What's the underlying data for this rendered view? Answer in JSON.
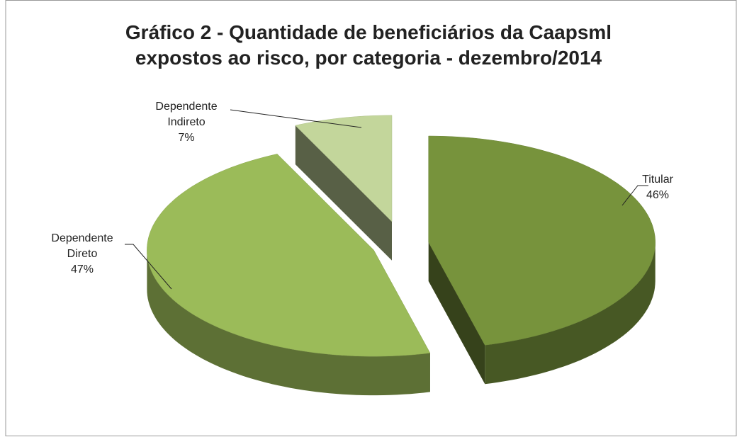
{
  "chart_data": {
    "type": "pie",
    "title": [
      "Gráfico 2 - Quantidade de beneficiários da Caapsml",
      "expostos ao risco, por categoria - dezembro/2014"
    ],
    "categories": [
      "Titular",
      "Dependente Direto",
      "Dependente Indireto"
    ],
    "values": [
      46,
      47,
      7
    ],
    "value_labels": [
      "46%",
      "47%",
      "7%"
    ],
    "colors": [
      "#77933c",
      "#9bbb59",
      "#c3d69b"
    ]
  }
}
